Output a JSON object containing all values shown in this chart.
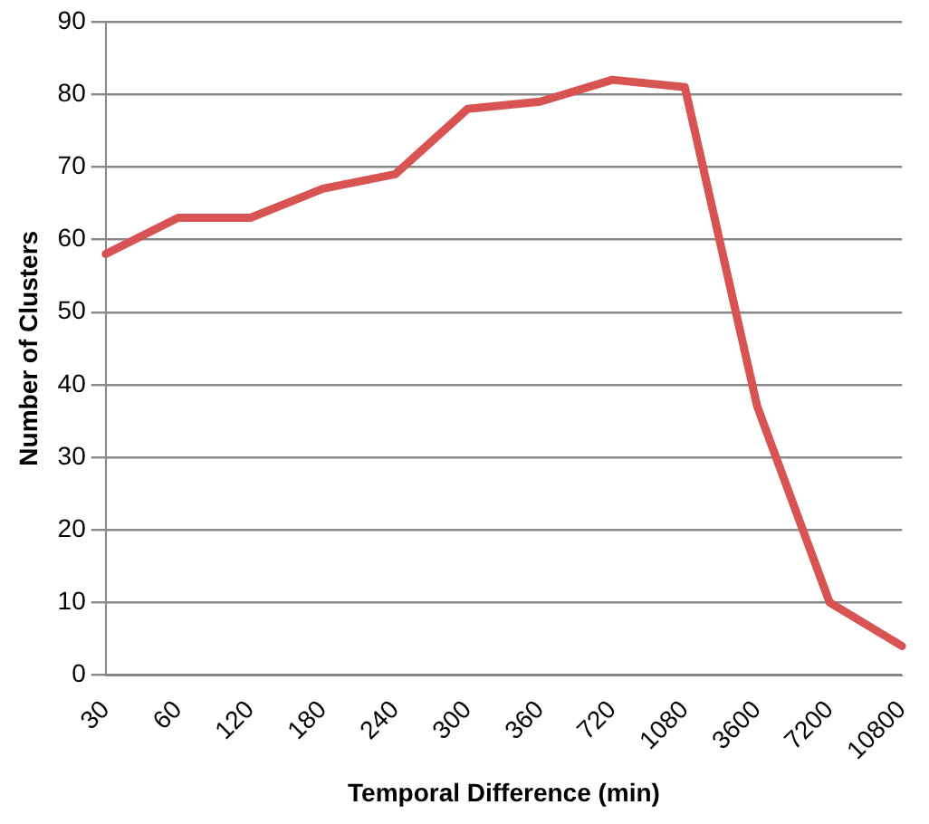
{
  "chart_data": {
    "type": "line",
    "xlabel": "Temporal Difference (min)",
    "ylabel": "Number of Clusters",
    "categories": [
      "30",
      "60",
      "120",
      "180",
      "240",
      "300",
      "360",
      "720",
      "1080",
      "3600",
      "7200",
      "10800"
    ],
    "series": [
      {
        "color": "#d75452",
        "values": [
          58,
          63,
          63,
          67,
          69,
          78,
          79,
          82,
          81,
          37,
          10,
          4
        ]
      }
    ],
    "ylim": [
      0,
      90
    ],
    "yticks": [
      0,
      10,
      20,
      30,
      40,
      50,
      60,
      70,
      80,
      90
    ],
    "grid": "y",
    "legend": false,
    "marker": "none",
    "line_style": "solid"
  }
}
